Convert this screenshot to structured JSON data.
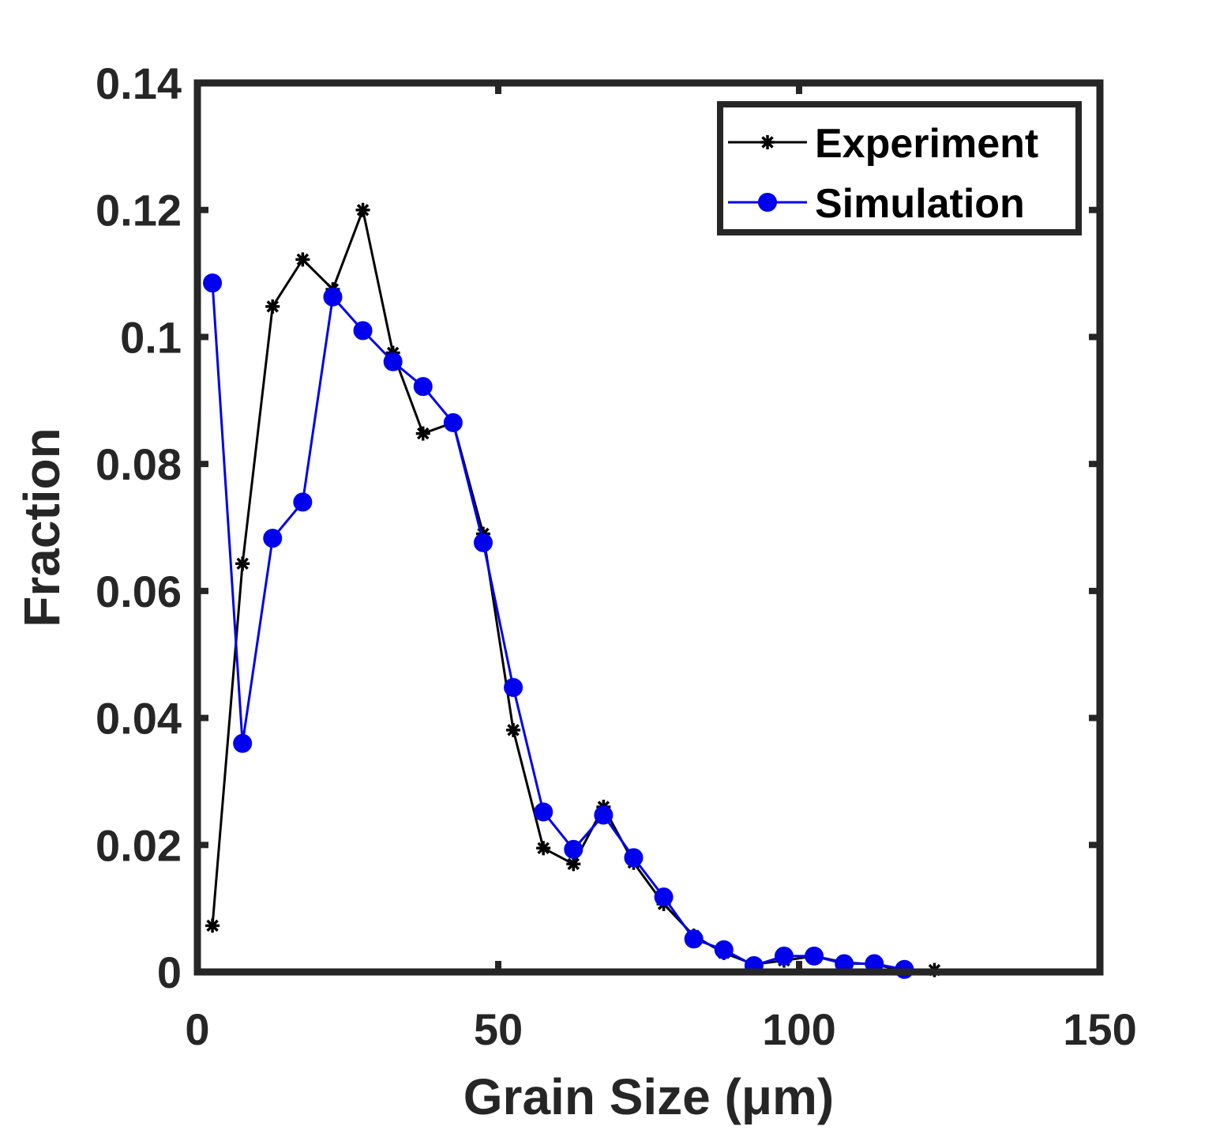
{
  "chart_data": {
    "type": "line",
    "title": "",
    "xlabel": "Grain Size (μm)",
    "ylabel": "Fraction",
    "xlim": [
      0,
      150
    ],
    "ylim": [
      0,
      0.14
    ],
    "xticks": [
      0,
      50,
      100,
      150
    ],
    "xtick_labels": [
      "0",
      "50",
      "100",
      "150"
    ],
    "yticks": [
      0,
      0.02,
      0.04,
      0.06,
      0.08,
      0.1,
      0.12,
      0.14
    ],
    "ytick_labels": [
      "0",
      "0.02",
      "0.04",
      "0.06",
      "0.08",
      "0.1",
      "0.12",
      "0.14"
    ],
    "grid": false,
    "legend_position": "top-right",
    "series": [
      {
        "name": "Experiment",
        "color": "#000000",
        "marker": "asterisk",
        "x": [
          2.5,
          7.5,
          12.5,
          17.5,
          22.5,
          27.5,
          32.5,
          37.5,
          42.5,
          47.5,
          52.5,
          57.5,
          62.5,
          67.5,
          72.5,
          77.5,
          82.5,
          87.5,
          92.5,
          97.5,
          102.5,
          107.5,
          112.5,
          117.5,
          122.5
        ],
        "y": [
          0.0073,
          0.0643,
          0.1048,
          0.1122,
          0.1075,
          0.12,
          0.0975,
          0.0848,
          0.0865,
          0.069,
          0.0381,
          0.0195,
          0.017,
          0.026,
          0.0172,
          0.0107,
          0.0057,
          0.003,
          0.0012,
          0.0018,
          0.0025,
          0.0015,
          0.0012,
          0.0002,
          0.0003
        ]
      },
      {
        "name": "Simulation",
        "color": "#0000ee",
        "marker": "circle",
        "x": [
          2.5,
          7.5,
          12.5,
          17.5,
          22.5,
          27.5,
          32.5,
          37.5,
          42.5,
          47.5,
          52.5,
          57.5,
          62.5,
          67.5,
          72.5,
          77.5,
          82.5,
          87.5,
          92.5,
          97.5,
          102.5,
          107.5,
          112.5,
          117.5
        ],
        "y": [
          0.1085,
          0.036,
          0.0683,
          0.074,
          0.1063,
          0.101,
          0.0961,
          0.0922,
          0.0865,
          0.0676,
          0.0448,
          0.0252,
          0.0193,
          0.0247,
          0.018,
          0.0118,
          0.0052,
          0.0035,
          0.001,
          0.0025,
          0.0025,
          0.0013,
          0.0013,
          0.0004
        ]
      }
    ]
  }
}
